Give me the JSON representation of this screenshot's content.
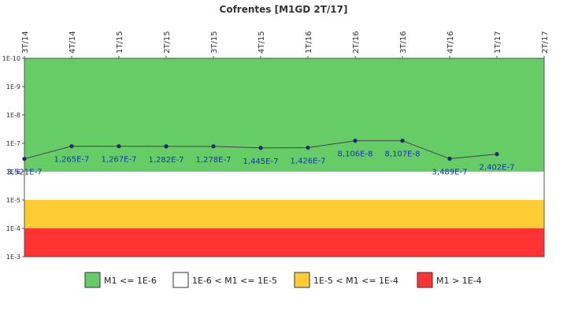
{
  "chart_data": {
    "type": "line",
    "title": "Cofrentes [M1GD 2T/17]",
    "x": [
      "3T/14",
      "4T/14",
      "1T/15",
      "2T/15",
      "3T/15",
      "4T/15",
      "1T/16",
      "2T/16",
      "3T/16",
      "4T/16",
      "1T/17",
      "2T/17"
    ],
    "yscale": "log",
    "y_reversed": true,
    "y_ticks": [
      "1E-10",
      "1E-9",
      "1E-8",
      "1E-7",
      "1E-6",
      "1E-5",
      "1E-4",
      "1E-3"
    ],
    "ylim": [
      1e-10,
      0.001
    ],
    "grid": false,
    "series": [
      {
        "values": [
          3.521e-07,
          1.265e-07,
          1.267e-07,
          1.282e-07,
          1.278e-07,
          1.445e-07,
          1.426e-07,
          8.106e-08,
          8.107e-08,
          3.489e-07,
          2.402e-07,
          null
        ],
        "labels": [
          "3,521E-7",
          "1,265E-7",
          "1,267E-7",
          "1,282E-7",
          "1,278E-7",
          "1,445E-7",
          "1,426E-7",
          "8,106E-8",
          "8,107E-8",
          "3,489E-7",
          "2,402E-7",
          ""
        ],
        "color": "#1a237e"
      }
    ],
    "bands": [
      {
        "label": "M1 <= 1E-6",
        "from": 1e-10,
        "to": 1e-06,
        "color": "#66cc66"
      },
      {
        "label": "1E-6 < M1 <= 1E-5",
        "from": 1e-06,
        "to": 1e-05,
        "color": "#ffffff"
      },
      {
        "label": "1E-5 < M1 <= 1E-4",
        "from": 1e-05,
        "to": 0.0001,
        "color": "#ffcc33"
      },
      {
        "label": "M1 > 1E-4",
        "from": 0.0001,
        "to": 0.001,
        "color": "#ff3333"
      }
    ],
    "legend_position": "bottom"
  }
}
